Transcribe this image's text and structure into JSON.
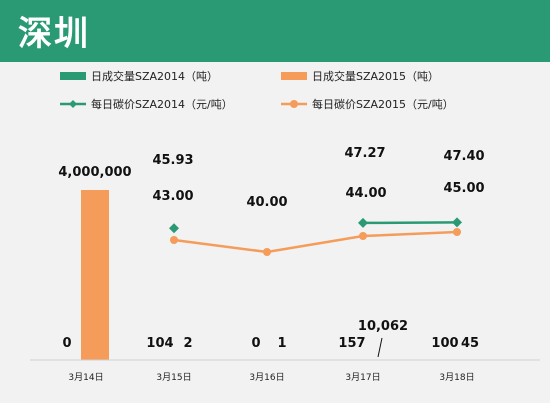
{
  "header": {
    "title": "深圳"
  },
  "colors": {
    "header_bg": "#2a9a74",
    "series_2014": "#2a9a74",
    "series_2015": "#f59c5a",
    "chart_bg": "#f2f2f2"
  },
  "chart_data": {
    "type": "bar",
    "title": "",
    "categories": [
      "3月14日",
      "3月15日",
      "3月16日",
      "3月17日",
      "3月18日"
    ],
    "bar_series": [
      {
        "name": "日成交量SZA2014（吨）",
        "values": [
          null,
          104,
          0,
          157,
          100
        ]
      },
      {
        "name": "日成交量SZA2015（吨）",
        "values": [
          4000000,
          2,
          1,
          10062,
          45
        ]
      }
    ],
    "line_series": [
      {
        "name": "每日碳价SZA2014（元/吨）",
        "values": [
          null,
          45.93,
          null,
          47.27,
          47.4
        ]
      },
      {
        "name": "每日碳价SZA2015（元/吨）",
        "values": [
          null,
          43.0,
          40.0,
          44.0,
          45.0
        ]
      }
    ],
    "bar_labels": {
      "s2014": [
        "",
        "104",
        "0",
        "157",
        "100"
      ],
      "s2015": [
        "4,000,000",
        "2",
        "1",
        "10,062",
        "45"
      ],
      "extra_zero": "0"
    },
    "line_labels": {
      "s2014": [
        "",
        "45.93",
        "",
        "47.27",
        "47.40"
      ],
      "s2015": [
        "",
        "43.00",
        "40.00",
        "44.00",
        "45.00"
      ]
    },
    "legend_position": "top",
    "grid": false
  }
}
